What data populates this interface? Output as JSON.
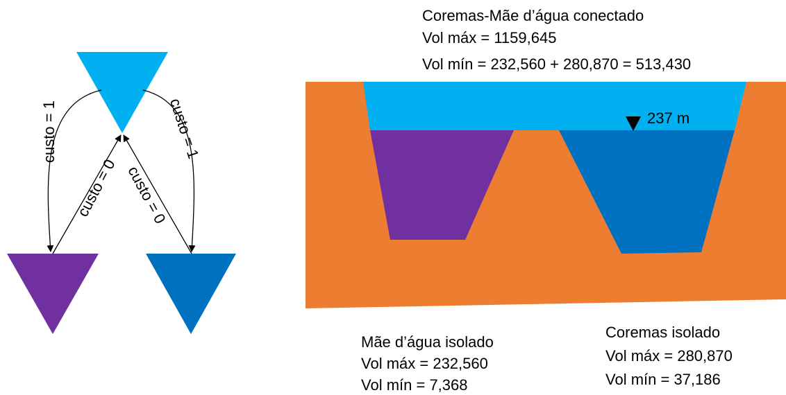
{
  "graph": {
    "edges": [
      {
        "label": "custo = 1"
      },
      {
        "label": "custo = 0"
      },
      {
        "label": "custo = 0"
      },
      {
        "label": "custo = 1"
      }
    ]
  },
  "connected": {
    "title": "Coremas-Mãe d’água conectado",
    "vol_max": "Vol máx = 1159,645",
    "vol_min": "Vol mín = 232,560 + 280,870 = 513,430"
  },
  "level": "237 m",
  "mae_dagua": {
    "title": "Mãe d’água isolado",
    "vol_max": "Vol máx = 232,560",
    "vol_min": "Vol mín = 7,368"
  },
  "coremas": {
    "title": "Coremas isolado",
    "vol_max": "Vol máx = 280,870",
    "vol_min": "Vol mín = 37,186"
  }
}
